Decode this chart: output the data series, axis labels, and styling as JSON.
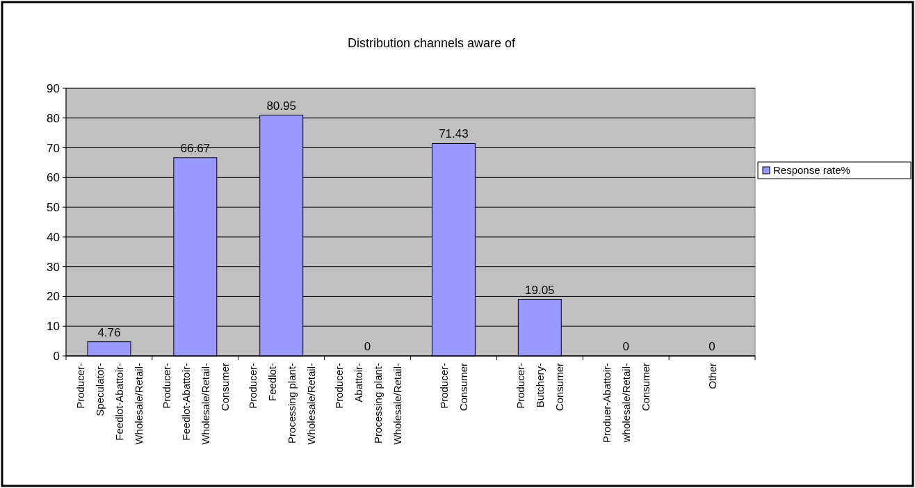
{
  "chart_data": {
    "type": "bar",
    "title": "Distribution channels aware of",
    "categories": [
      "Producer-\nSpeculator-\nFeedlot-Abattoir-\nWholesale/Retail-",
      "Producer-\nFeedlot-Abattoir-\nWholesale/Retail-\nConsumer",
      "Producer-\nFeedlot-\nProcessing plant-\nWholesale/Retail-",
      "Producer-\nAbattoir-\nProcessing plant-\nWholesale/Retail-",
      "Producer-\nConsumer",
      "Producer-\nButchery-\nConsumer",
      "Produer-Abattoir-\nwholesale/Retail-\nConsumer",
      "Other"
    ],
    "series": [
      {
        "name": "Response rate%",
        "color": "#9999ff",
        "values": [
          4.76,
          66.67,
          80.95,
          0,
          71.43,
          19.05,
          0,
          0
        ]
      }
    ],
    "ylim": [
      0,
      90
    ],
    "yticks": [
      0,
      10,
      20,
      30,
      40,
      50,
      60,
      70,
      80,
      90
    ],
    "grid": "y",
    "legend": "right",
    "data_labels": true
  }
}
